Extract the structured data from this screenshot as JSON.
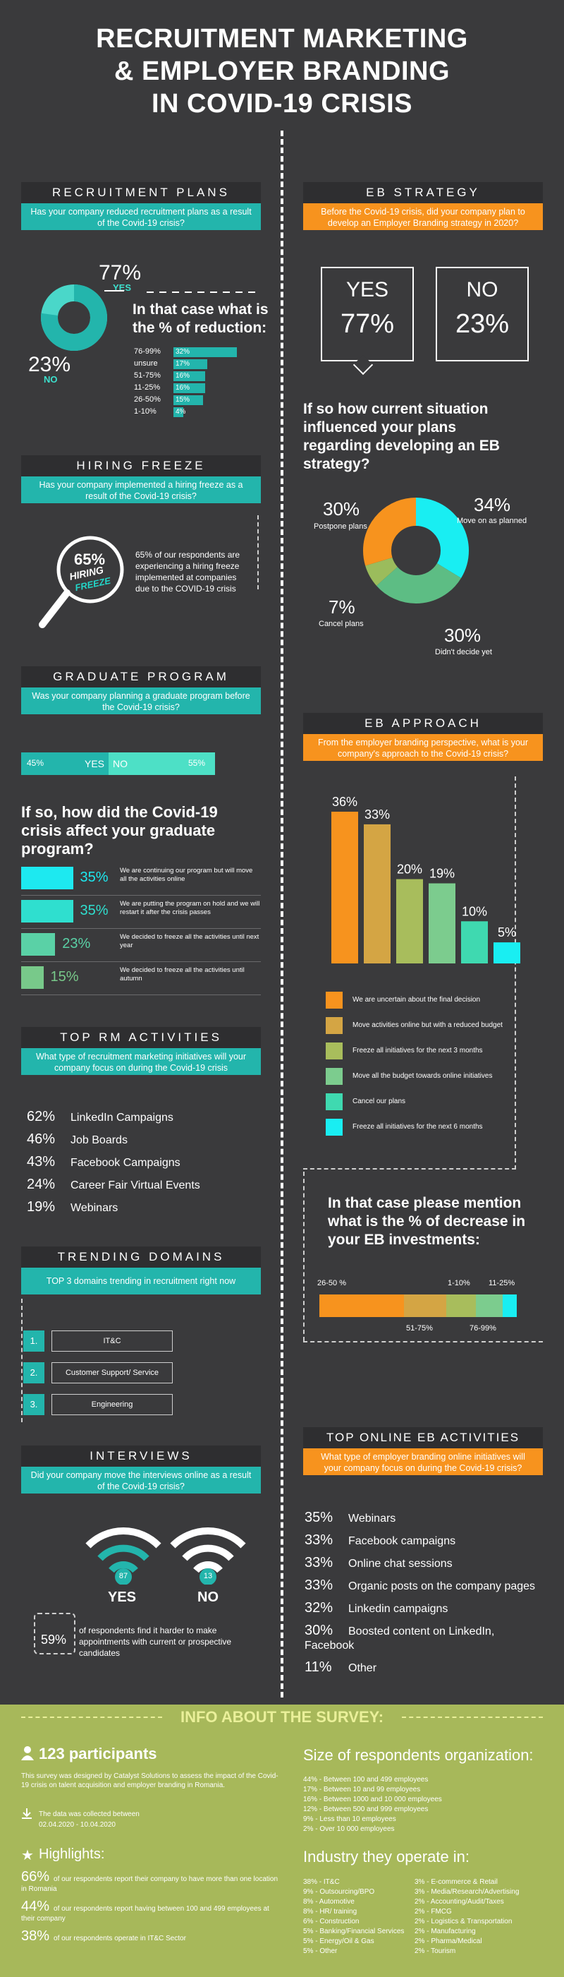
{
  "title": [
    "RECRUITMENT MARKETING",
    "& EMPLOYER BRANDING",
    "IN COVID-19 CRISIS"
  ],
  "recruitment_plans": {
    "heading": "RECRUITMENT PLANS",
    "question": "Has your company reduced recruitment plans as a result of the Covid-19 crisis?",
    "yes_pct": "77%",
    "yes_label": "YES",
    "no_pct": "23%",
    "no_label": "NO",
    "yes_value": 77,
    "reduction_title": "In that case what is the % of reduction:",
    "reductions": [
      {
        "label": "76-99%",
        "value": "32%",
        "num": 32
      },
      {
        "label": "unsure",
        "value": "17%",
        "num": 17
      },
      {
        "label": "51-75%",
        "value": "16%",
        "num": 16
      },
      {
        "label": "11-25%",
        "value": "16%",
        "num": 16
      },
      {
        "label": "26-50%",
        "value": "15%",
        "num": 15
      },
      {
        "label": "1-10%",
        "value": "4%",
        "num": 4
      }
    ]
  },
  "hiring_freeze": {
    "heading": "HIRING FREEZE",
    "question": "Has your company implemented a hiring freeze as a result of the Covid-19 crisis?",
    "pct": "65%",
    "word1": "HIRING",
    "word2": "FREEZE",
    "text": "65% of our respondents are experiencing a hiring freeze implemented at companies due to the COVID-19 crisis"
  },
  "graduate_program": {
    "heading": "GRADUATE PROGRAM",
    "question": "Was your company planning a graduate program before the Covid-19 crisis?",
    "yes_pct": "45%",
    "yes_label": "YES",
    "no_label": "NO",
    "no_pct": "55%",
    "yes_value": 45,
    "affect_title": "If so, how did the Covid-19 crisis affect your graduate program?",
    "items": [
      {
        "pct": "35%",
        "num": 35,
        "text": "We are continuing our program but will move all the activities online",
        "color": "#1de9f0"
      },
      {
        "pct": "35%",
        "num": 35,
        "text": "We are putting the program on hold and we will restart it after the crisis passes",
        "color": "#2fdfcf"
      },
      {
        "pct": "23%",
        "num": 23,
        "text": "We decided to freeze all the activities until next year",
        "color": "#5ad1a6"
      },
      {
        "pct": "15%",
        "num": 15,
        "text": "We decided to freeze all the activities until autumn",
        "color": "#78c98a"
      }
    ]
  },
  "top_rm": {
    "heading": "TOP RM ACTIVITIES",
    "question": "What type of recruitment marketing initiatives will your company focus on during the Covid-19 crisis",
    "items": [
      {
        "pct": "62%",
        "label": "LinkedIn Campaigns"
      },
      {
        "pct": "46%",
        "label": "Job Boards"
      },
      {
        "pct": "43%",
        "label": "Facebook Campaigns"
      },
      {
        "pct": "24%",
        "label": "Career Fair Virtual Events"
      },
      {
        "pct": "19%",
        "label": "Webinars"
      }
    ]
  },
  "trending": {
    "heading": "TRENDING DOMAINS",
    "question": "TOP 3 domains trending in recruitment right now",
    "items": [
      {
        "num": "1.",
        "label": "IT&C"
      },
      {
        "num": "2.",
        "label": "Customer Support/ Service"
      },
      {
        "num": "3.",
        "label": "Engineering"
      }
    ]
  },
  "interviews": {
    "heading": "INTERVIEWS",
    "question": "Did your company move the interviews online as a result of the Covid-19 crisis?",
    "yes_pct": "87",
    "yes_label": "YES",
    "no_pct": "13",
    "no_label": "NO",
    "hard_pct": "59%",
    "hard_text": "of respondents find it harder to make appointments with current or prospective candidates"
  },
  "eb_strategy": {
    "heading": "EB STRATEGY",
    "question": "Before the Covid-19 crisis, did your company plan to develop an Employer Branding strategy in 2020?",
    "yes_label": "YES",
    "yes_pct": "77%",
    "no_label": "NO",
    "no_pct": "23%",
    "influence_title": "If so how current situation influenced your plans regarding developing an EB strategy?",
    "donut": [
      {
        "pct": "34%",
        "num": 34,
        "label": "Move on as planned",
        "color": "#19eef2"
      },
      {
        "pct": "30%",
        "num": 30,
        "label": "Didn't decide yet",
        "color": "#5dbd84"
      },
      {
        "pct": "7%",
        "num": 7,
        "label": "Cancel plans",
        "color": "#9bbc5c"
      },
      {
        "pct": "30%",
        "num": 30,
        "label": "Postpone plans",
        "color": "#f7931e"
      }
    ]
  },
  "eb_approach": {
    "heading": "EB APPROACH",
    "question": "From the employer branding perspective, what is your company's approach to the Covid-19 crisis?",
    "decrease_title": "In that case please mention what is the % of decrease in your EB investments:",
    "decrease_labels": [
      "26-50 %",
      "1-10%",
      "11-25%",
      "51-75%",
      "76-99%"
    ]
  },
  "chart_data": {
    "type": "bar",
    "categories": [
      "We are uncertain about the final decision",
      "Move activities online but with a reduced budget",
      "Freeze all initiatives for the next 3 months",
      "Move all the budget towards online initiatives",
      "Cancel our plans",
      "Freeze all initiatives for the next 6 months"
    ],
    "values": [
      36,
      33,
      20,
      19,
      10,
      5
    ],
    "labels": [
      "36%",
      "33%",
      "20%",
      "19%",
      "10%",
      "5%"
    ],
    "colors": [
      "#f7931e",
      "#d4a544",
      "#a8bd5c",
      "#7ccc8e",
      "#3fd9b0",
      "#19eef2"
    ],
    "ylim": [
      0,
      36
    ]
  },
  "top_online_eb": {
    "heading": "TOP ONLINE EB ACTIVITIES",
    "question": "What type of employer branding online initiatives will your company focus on during the Covid-19 crisis?",
    "items": [
      {
        "pct": "35%",
        "label": "Webinars"
      },
      {
        "pct": "33%",
        "label": "Facebook campaigns"
      },
      {
        "pct": "33%",
        "label": "Online chat sessions"
      },
      {
        "pct": "33%",
        "label": "Organic posts on the company pages"
      },
      {
        "pct": "32%",
        "label": "Linkedin campaigns"
      },
      {
        "pct": "30%",
        "label": "Boosted content on LinkedIn, Facebook"
      },
      {
        "pct": "11%",
        "label": "Other"
      }
    ]
  },
  "survey": {
    "title": "INFO ABOUT THE SURVEY:",
    "participants": "123 participants",
    "description": "This survey was designed by Catalyst Solutions to assess the impact of the Covid-19 crisis on talent acquisition and employer branding in Romania.",
    "collected_line1": "The data was collected between",
    "collected_line2": "02.04.2020 - 10.04.2020",
    "highlights_title": "Highlights:",
    "highlights": [
      {
        "pct": "66%",
        "text": "of our respondents report their company to have more than one location in Romania"
      },
      {
        "pct": "44%",
        "text": "of our respondents report having between 100 and 499 employees at their company"
      },
      {
        "pct": "38%",
        "text": "of our respondents operate in IT&C Sector"
      }
    ],
    "size_title": "Size of respondents organization:",
    "sizes": [
      "44% - Between 100 and 499 employees",
      "17% - Between 10 and 99 employees",
      "16% - Between 1000 and 10 000 employees",
      "12% - Between 500 and 999 employees",
      "9% - Less than 10 employees",
      "2% - Over 10 000 employees"
    ],
    "industry_title": "Industry they operate in:",
    "industries_left": [
      "38% - IT&C",
      "9% - Outsourcing/BPO",
      "8% - Automotive",
      "8% - HR/ training",
      "6% - Construction",
      "5% - Banking/Financial Services",
      "5% - Energy/Oil & Gas",
      "5% - Other"
    ],
    "industries_right": [
      "3% - E-commerce & Retail",
      "3% - Media/Research/Advertising",
      "2% - Accounting/Audit/Taxes",
      "2% - FMCG",
      "2% - Logistics & Transportation",
      "2% - Manufacturing",
      "2% - Pharma/Medical",
      "2% - Tourism"
    ]
  },
  "colors": {
    "bg": "#3a3a3c",
    "teal": "#23b5ac",
    "orange": "#f7931e",
    "footer": "#a7b85a"
  }
}
